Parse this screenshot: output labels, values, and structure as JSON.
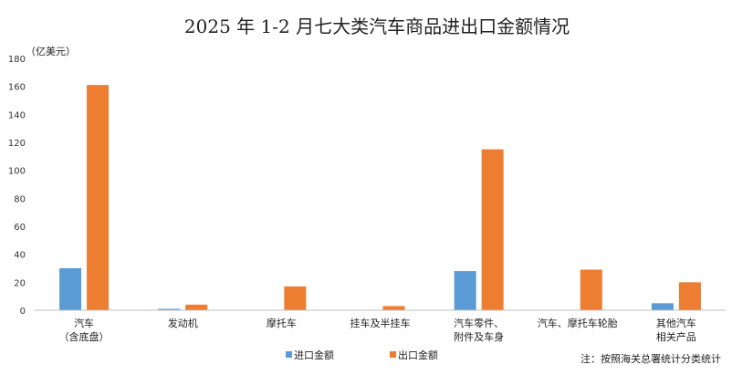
{
  "chart_data": {
    "type": "bar",
    "title": "2025 年 1-2 月七大类汽车商品进出口金额情况",
    "unit_label": "（亿美元）",
    "note": "注：按照海关总署统计分类统计",
    "ylim": [
      0,
      180
    ],
    "yticks": [
      0,
      20,
      40,
      60,
      80,
      100,
      120,
      140,
      160,
      180
    ],
    "grid": false,
    "legend_position": "bottom",
    "categories": [
      [
        "汽车",
        "（含底盘）"
      ],
      [
        "发动机"
      ],
      [
        "摩托车"
      ],
      [
        "挂车及半挂车"
      ],
      [
        "汽车零件、",
        "附件及车身"
      ],
      [
        "汽车、摩托车轮胎"
      ],
      [
        "其他汽车",
        "相关产品"
      ]
    ],
    "series": [
      {
        "name": "进口金额",
        "color": "#5B9BD5",
        "values": [
          30,
          1,
          0,
          0,
          28,
          0,
          5
        ]
      },
      {
        "name": "出口金额",
        "color": "#ED7D31",
        "values": [
          161,
          4,
          17,
          3,
          115,
          29,
          20
        ]
      }
    ]
  }
}
